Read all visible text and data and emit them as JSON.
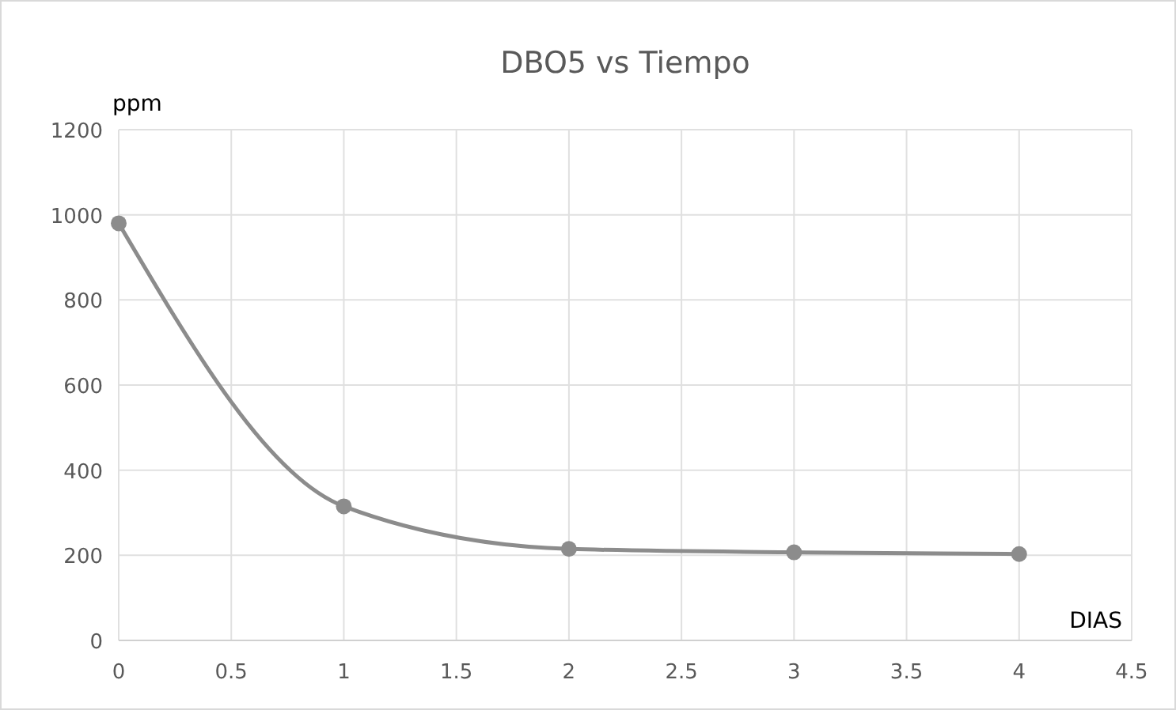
{
  "chart_data": {
    "type": "line",
    "title": "DBO5 vs Tiempo",
    "xlabel": "DIAS",
    "ylabel": "ppm",
    "x": [
      0,
      1,
      2,
      3,
      4
    ],
    "series": [
      {
        "color": "#8c8c8c",
        "values": [
          980,
          315,
          215,
          207,
          203
        ]
      }
    ],
    "xlim": [
      0,
      4.5
    ],
    "xticks": [
      0,
      0.5,
      1,
      1.5,
      2,
      2.5,
      3,
      3.5,
      4,
      4.5
    ],
    "ylim": [
      0,
      1200
    ],
    "yticks": [
      0,
      200,
      400,
      600,
      800,
      1000,
      1200
    ],
    "grid": true,
    "marker": "circle",
    "line_style": "solid"
  }
}
